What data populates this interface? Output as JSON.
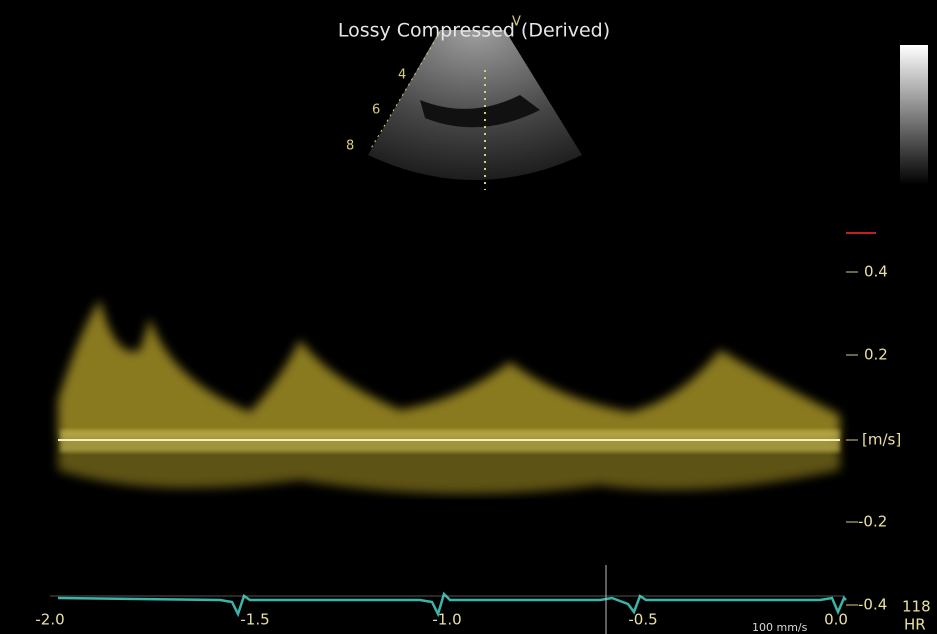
{
  "header": {
    "title": "Lossy Compressed (Derived)"
  },
  "sector": {
    "marker": "V",
    "depth_labels": [
      "4",
      "6",
      "8"
    ]
  },
  "velocity_axis": {
    "unit": "[m/s]",
    "ticks": [
      "0.4",
      "0.2",
      "-0.2",
      "-0.4"
    ]
  },
  "time_axis": {
    "ticks": [
      "-2.0",
      "-1.5",
      "-1.0",
      "-0.5",
      "0.0"
    ]
  },
  "sweep_speed": "100 mm/s",
  "heart_rate": {
    "value": "118",
    "label": "HR"
  }
}
